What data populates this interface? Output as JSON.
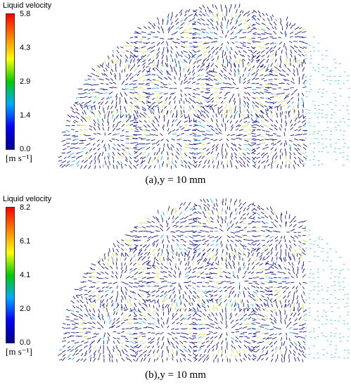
{
  "chart_data": [
    {
      "type": "vector-field",
      "colorbar_label": "Liquid velocity",
      "colorbar_ticks": [
        "5.8",
        "4.3",
        "2.9",
        "1.4",
        "0.0"
      ],
      "colorbar_range": [
        0.0,
        5.8
      ],
      "unit": "[m s⁻¹]",
      "caption": "(a),y = 10 mm",
      "colormap": [
        "#00008c",
        "#0000ff",
        "#00aaff",
        "#00cc00",
        "#ffff00",
        "#ff8000",
        "#ff0000"
      ],
      "arrow_color": "#000080",
      "highlight_color": "#ccdd33",
      "side_region_color": "#33bbdd"
    },
    {
      "type": "vector-field",
      "colorbar_label": "Liquid velocity",
      "colorbar_ticks": [
        "8.2",
        "6.1",
        "4.1",
        "2.0",
        "0.0"
      ],
      "colorbar_range": [
        0.0,
        8.2
      ],
      "unit": "[m s⁻¹]",
      "caption": "(b),y = 10 mm",
      "colormap": [
        "#00008c",
        "#0000ff",
        "#00aaff",
        "#00cc00",
        "#ffff00",
        "#ff8000",
        "#ff0000"
      ],
      "arrow_color": "#000080",
      "highlight_color": "#ccdd33",
      "side_region_color": "#33bbdd"
    }
  ]
}
